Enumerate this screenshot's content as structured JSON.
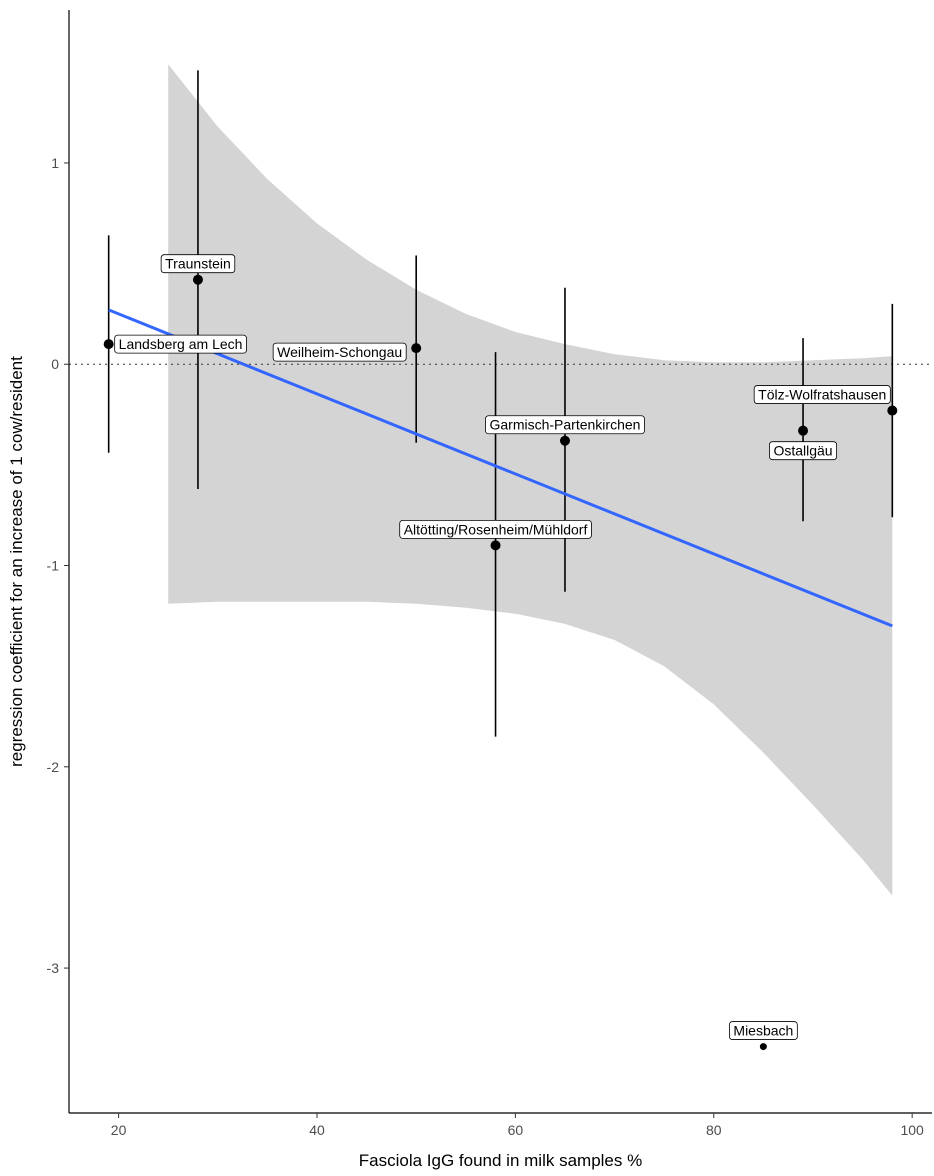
{
  "chart_data": {
    "type": "scatter",
    "title": "",
    "xlabel": "Fasciola IgG found in milk samples %",
    "ylabel": "regression coefficient for an increase of 1 cow/resident",
    "xlim": [
      15,
      102
    ],
    "ylim": [
      -3.72,
      1.76
    ],
    "x_ticks": [
      {
        "value": 20,
        "label": "20"
      },
      {
        "value": 40,
        "label": "40"
      },
      {
        "value": 60,
        "label": "60"
      },
      {
        "value": 80,
        "label": "80"
      },
      {
        "value": 100,
        "label": "100"
      }
    ],
    "y_ticks": [
      {
        "value": 1,
        "label": "1"
      },
      {
        "value": 0,
        "label": "0"
      },
      {
        "value": -1,
        "label": "-1"
      },
      {
        "value": -2,
        "label": "-2"
      },
      {
        "value": -3,
        "label": "-3"
      }
    ],
    "grid": false,
    "reference_line": {
      "y": 0,
      "style": "dotted"
    },
    "fit_line": {
      "x": [
        19,
        98
      ],
      "y": [
        0.27,
        -1.3
      ],
      "color": "#3366ff"
    },
    "confidence_band": {
      "color": "#d4d4d4",
      "x": [
        25,
        30,
        35,
        40,
        45,
        50,
        55,
        60,
        65,
        70,
        75,
        80,
        85,
        90,
        95,
        98
      ],
      "upper": [
        1.49,
        1.18,
        0.92,
        0.7,
        0.52,
        0.37,
        0.25,
        0.16,
        0.1,
        0.05,
        0.02,
        0.01,
        0.01,
        0.02,
        0.03,
        0.04
      ],
      "lower": [
        -1.19,
        -1.18,
        -1.18,
        -1.18,
        -1.18,
        -1.19,
        -1.21,
        -1.24,
        -1.29,
        -1.37,
        -1.5,
        -1.69,
        -1.93,
        -2.19,
        -2.46,
        -2.64
      ]
    },
    "points": [
      {
        "label": "Landsberg am Lech",
        "x": 19,
        "y": 0.1,
        "ci_low": -0.44,
        "ci_high": 0.64,
        "label_side": "right"
      },
      {
        "label": "Traunstein",
        "x": 28,
        "y": 0.42,
        "ci_low": -0.62,
        "ci_high": 1.46,
        "label_side": "above"
      },
      {
        "label": "Weilheim-Schongau",
        "x": 50,
        "y": 0.08,
        "ci_low": -0.39,
        "ci_high": 0.54,
        "label_side": "below-left"
      },
      {
        "label": "Altötting/Rosenheim/Mühldorf",
        "x": 58,
        "y": -0.9,
        "ci_low": -1.85,
        "ci_high": 0.06,
        "label_side": "above"
      },
      {
        "label": "Garmisch-Partenkirchen",
        "x": 65,
        "y": -0.38,
        "ci_low": -1.13,
        "ci_high": 0.38,
        "label_side": "above"
      },
      {
        "label": "Ostallgäu",
        "x": 89,
        "y": -0.33,
        "ci_low": -0.78,
        "ci_high": 0.13,
        "label_side": "below"
      },
      {
        "label": "Tölz-Wolfratshausen",
        "x": 98,
        "y": -0.23,
        "ci_low": -0.76,
        "ci_high": 0.3,
        "label_side": "above-left"
      },
      {
        "label": "Miesbach",
        "x": 85,
        "y": -3.39,
        "ci_low": null,
        "ci_high": null,
        "label_side": "above",
        "point_size": "small"
      }
    ]
  }
}
